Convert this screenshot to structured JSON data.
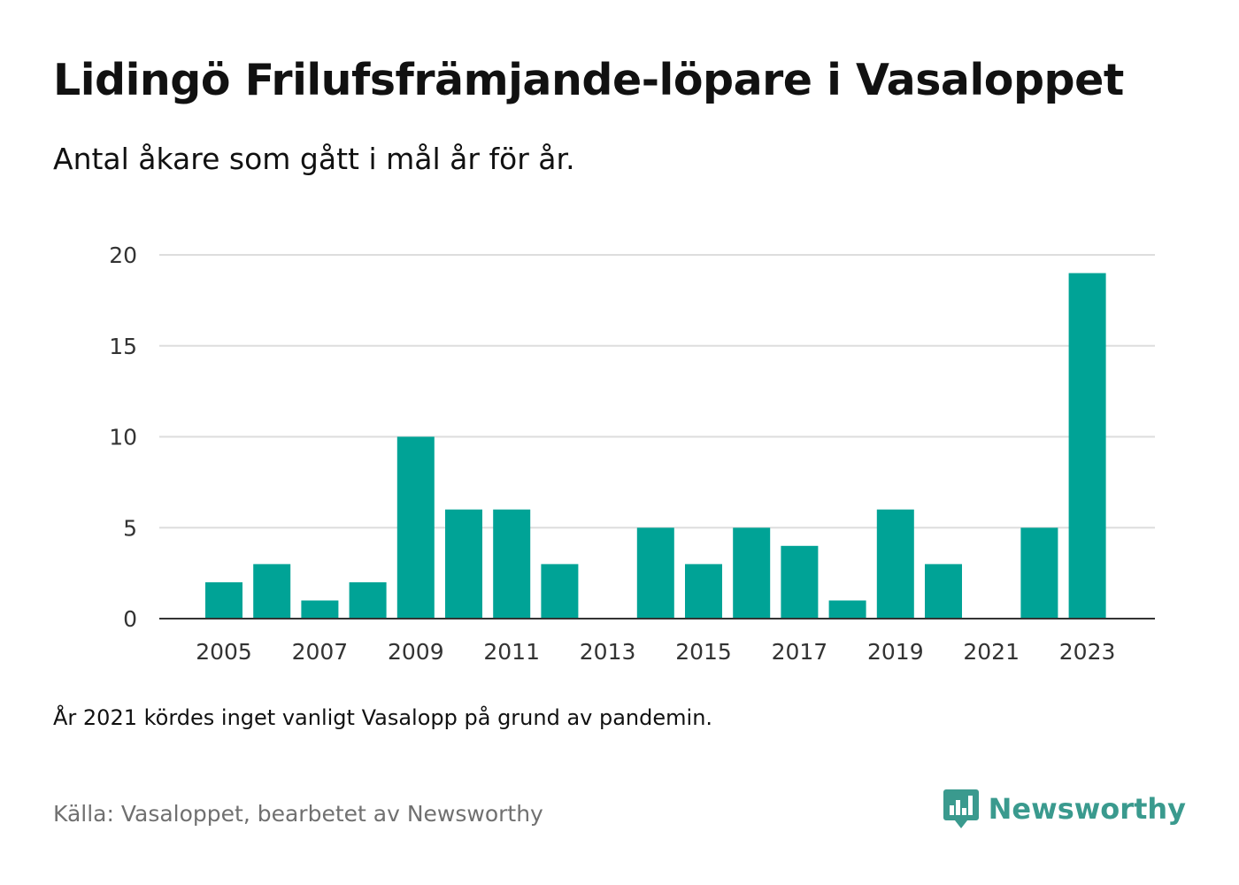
{
  "header": {
    "title": "Lidingö Frilufsfrämjande-löpare i Vasaloppet",
    "subtitle": "Antal åkare som gått i mål år för år."
  },
  "footer": {
    "note": "År 2021 kördes inget vanligt Vasalopp på grund av pandemin.",
    "source": "Källa: Vasaloppet, bearbetet av Newsworthy",
    "brand": "Newsworthy",
    "brand_color": "#3a9a8e",
    "brand_icon": "bar-chart-badge-icon"
  },
  "chart_data": {
    "type": "bar",
    "categories": [
      "2005",
      "2006",
      "2007",
      "2008",
      "2009",
      "2010",
      "2011",
      "2012",
      "2013",
      "2014",
      "2015",
      "2016",
      "2017",
      "2018",
      "2019",
      "2020",
      "2021",
      "2022",
      "2023"
    ],
    "values": [
      2,
      3,
      1,
      2,
      10,
      6,
      6,
      3,
      0,
      5,
      3,
      5,
      4,
      1,
      6,
      3,
      0,
      5,
      19
    ],
    "x_tick_labels": [
      "2005",
      "2007",
      "2009",
      "2011",
      "2013",
      "2015",
      "2017",
      "2019",
      "2021",
      "2023"
    ],
    "y_ticks": [
      0,
      5,
      10,
      15,
      20
    ],
    "ylim": [
      0,
      20
    ],
    "grid": true,
    "bar_color": "#00a396",
    "xlabel": "",
    "ylabel": ""
  }
}
